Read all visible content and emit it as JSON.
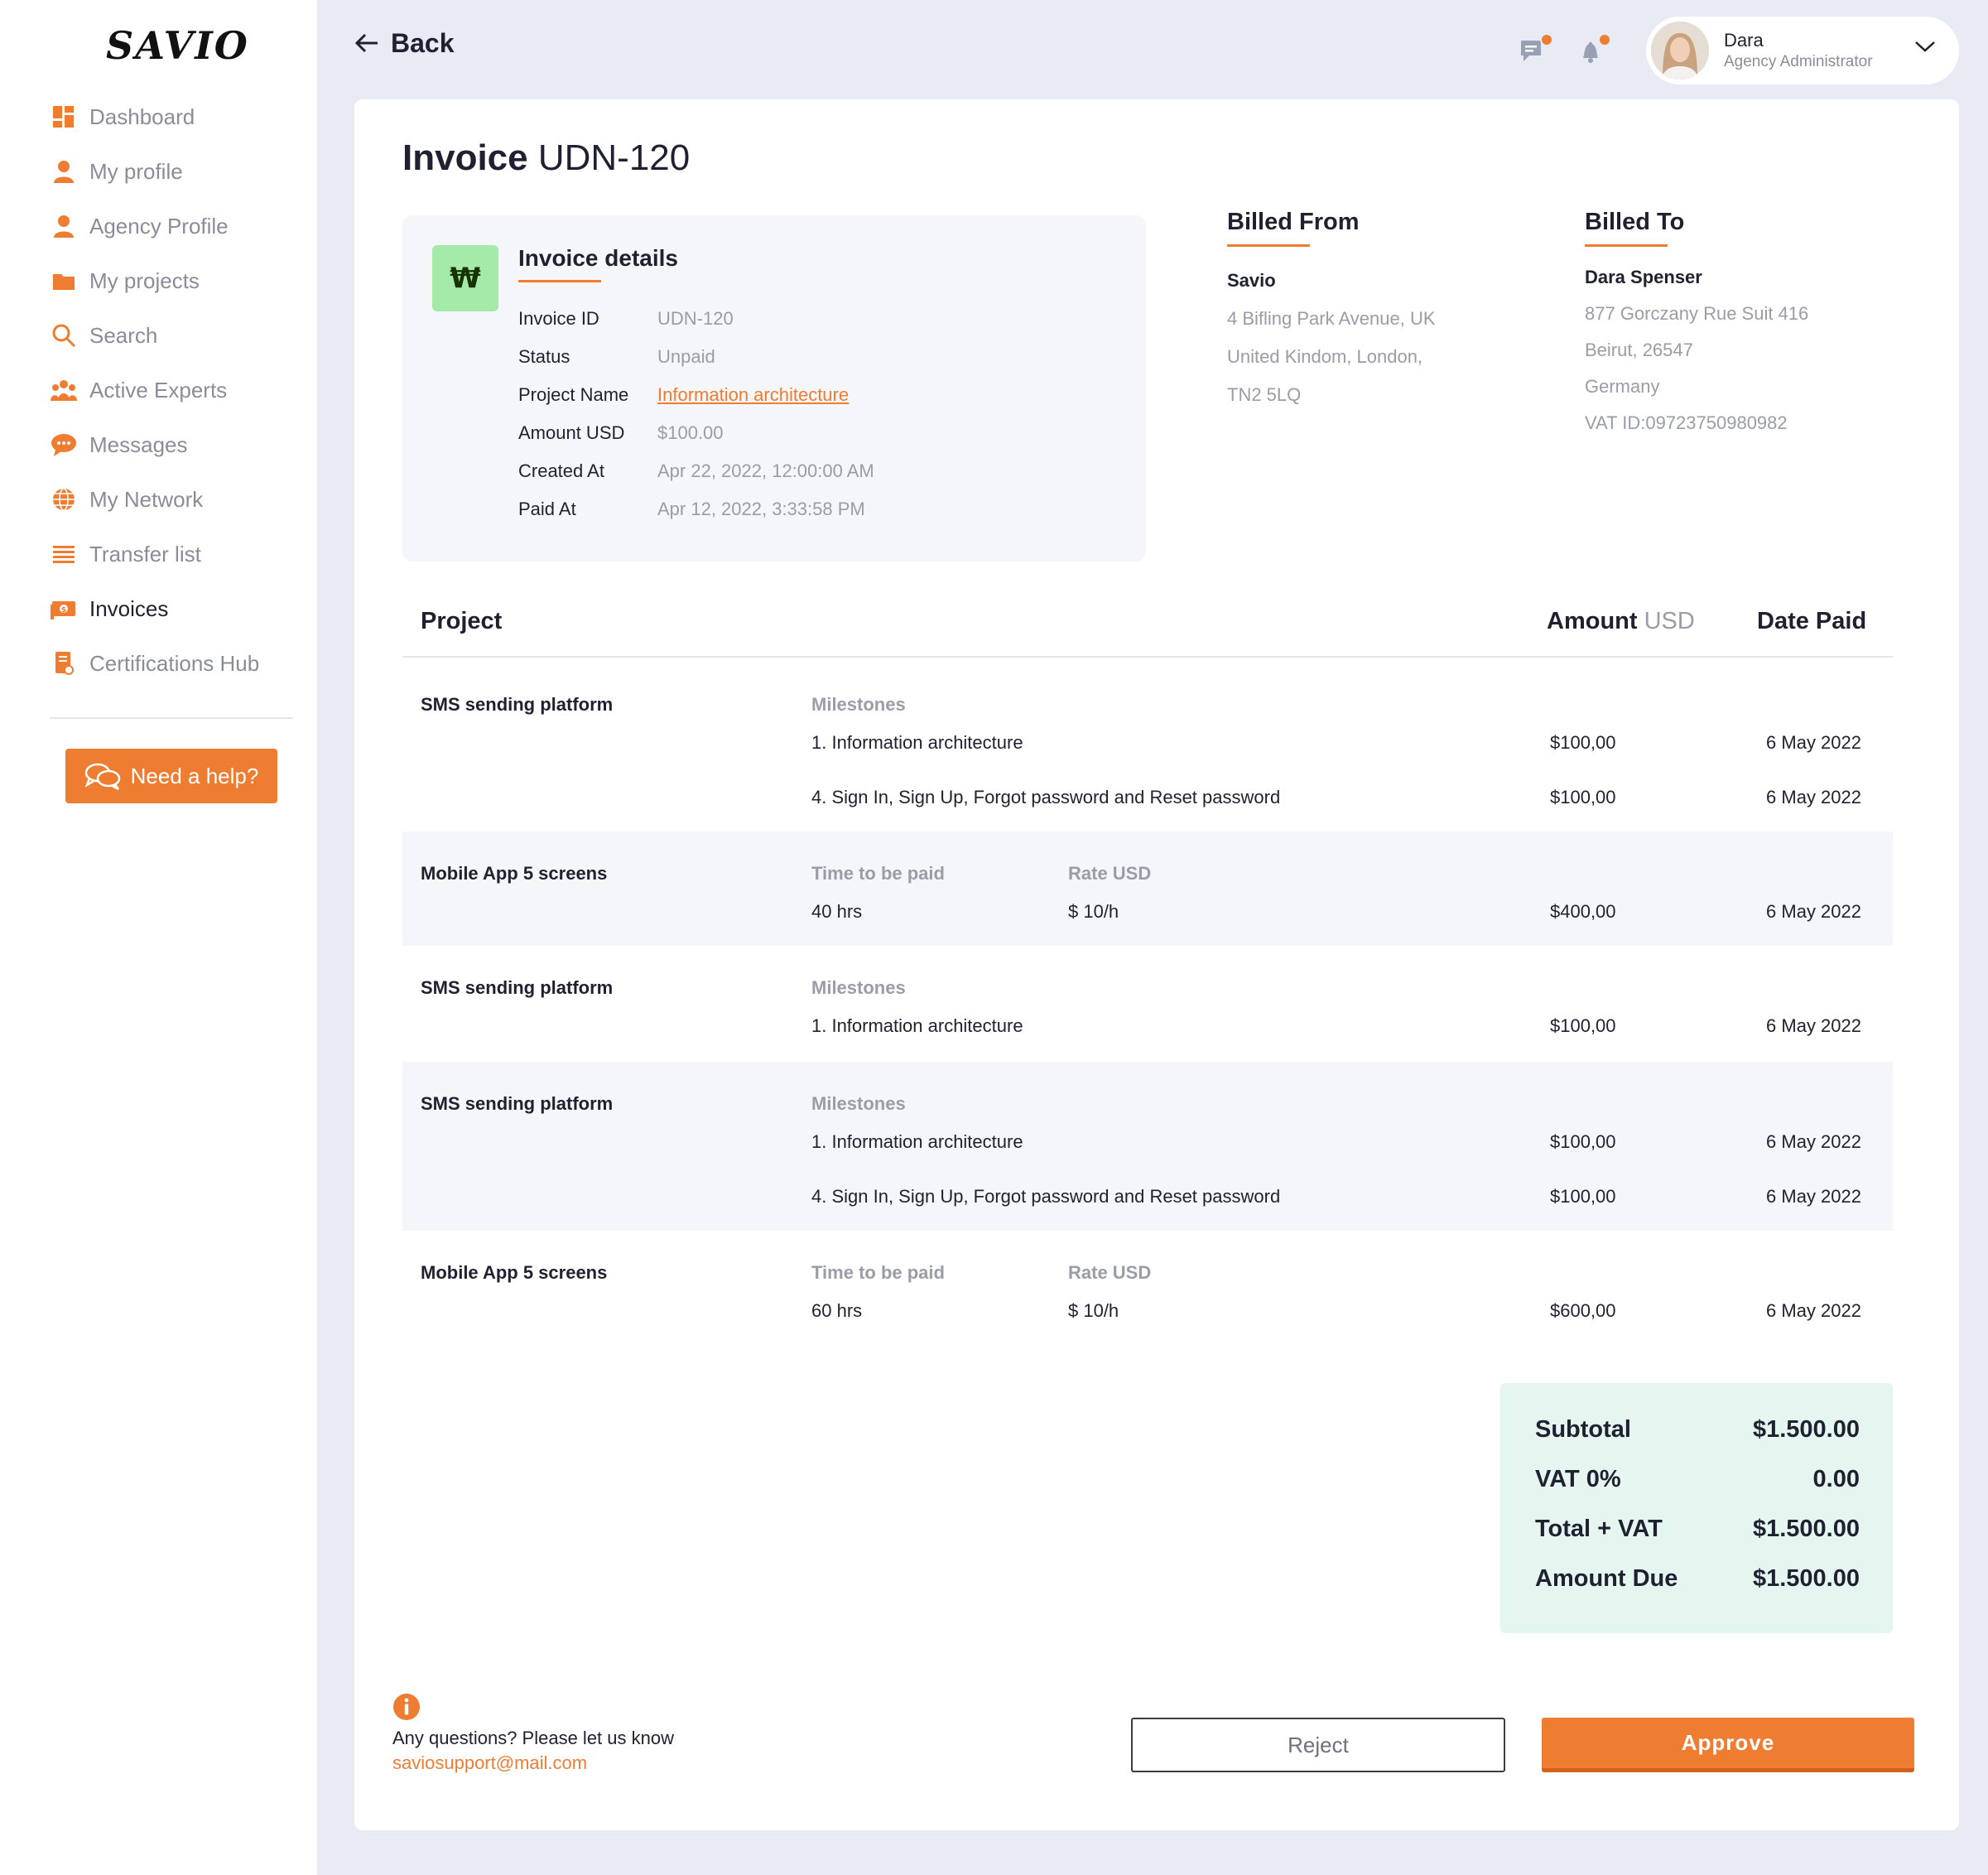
{
  "app": {
    "logo": "SAVIO"
  },
  "sidebar": {
    "items": [
      {
        "label": "Dashboard",
        "icon": "dashboard-icon"
      },
      {
        "label": "My profile",
        "icon": "user-icon"
      },
      {
        "label": "Agency Profile",
        "icon": "user-icon"
      },
      {
        "label": "My projects",
        "icon": "folder-icon"
      },
      {
        "label": "Search",
        "icon": "search-icon"
      },
      {
        "label": "Active Experts",
        "icon": "team-icon"
      },
      {
        "label": "Messages",
        "icon": "chat-icon"
      },
      {
        "label": "My Network",
        "icon": "globe-icon"
      },
      {
        "label": "Transfer list",
        "icon": "list-icon"
      },
      {
        "label": "Invoices",
        "icon": "invoice-icon",
        "active": true
      },
      {
        "label": "Certifications Hub",
        "icon": "certificate-icon"
      }
    ],
    "help_label": "Need a help?"
  },
  "topbar": {
    "back_label": "Back",
    "user": {
      "name": "Dara",
      "role": "Agency Administrator"
    }
  },
  "invoice": {
    "title_prefix": "Invoice",
    "title_id": "UDN-120",
    "details": {
      "heading": "Invoice details",
      "logo_text": "₩",
      "rows": [
        {
          "key": "Invoice ID",
          "value": "UDN-120"
        },
        {
          "key": "Status",
          "value": "Unpaid"
        },
        {
          "key": "Project Name",
          "value": "Information architecture"
        },
        {
          "key": "Amount USD",
          "value": "$100.00"
        },
        {
          "key": "Created At",
          "value": "Apr 22, 2022, 12:00:00 AM"
        },
        {
          "key": "Paid At",
          "value": "Apr 12, 2022, 3:33:58 PM"
        }
      ]
    },
    "billed_from": {
      "heading": "Billed From",
      "name": "Savio",
      "lines": [
        "4 Bifling Park Avenue, UK",
        "United Kindom, London,",
        "TN2 5LQ"
      ]
    },
    "billed_to": {
      "heading": "Billed To",
      "name": "Dara Spenser",
      "lines": [
        "877 Gorczany Rue Suit 416",
        "Beirut, 26547",
        "Germany",
        "VAT ID:09723750980982"
      ]
    }
  },
  "table": {
    "headers": {
      "project": "Project",
      "amount": "Amount",
      "amount_unit": "USD",
      "date": "Date Paid"
    },
    "sub_labels": {
      "milestones": "Milestones",
      "time": "Time to be paid",
      "rate": "Rate USD"
    },
    "rows": [
      {
        "project": "SMS sending platform",
        "type": "milestones",
        "items": [
          {
            "name": "1. Information architecture",
            "amount": "$100,00",
            "date": "6 May 2022"
          },
          {
            "name": "4. Sign In, Sign Up, Forgot password and Reset password",
            "amount": "$100,00",
            "date": "6 May 2022"
          }
        ]
      },
      {
        "project": "Mobile App 5 screens",
        "type": "time",
        "hours": "40 hrs",
        "rate": "$ 10/h",
        "amount": "$400,00",
        "date": "6 May 2022"
      },
      {
        "project": "SMS sending platform",
        "type": "milestones",
        "items": [
          {
            "name": "1. Information architecture",
            "amount": "$100,00",
            "date": "6 May 2022"
          }
        ]
      },
      {
        "project": "SMS sending platform",
        "type": "milestones",
        "items": [
          {
            "name": "1. Information architecture",
            "amount": "$100,00",
            "date": "6 May 2022"
          },
          {
            "name": "4. Sign In, Sign Up, Forgot password and Reset password",
            "amount": "$100,00",
            "date": "6 May 2022"
          }
        ]
      },
      {
        "project": "Mobile App 5 screens",
        "type": "time",
        "hours": "60 hrs",
        "rate": "$ 10/h",
        "amount": "$600,00",
        "date": "6 May 2022"
      }
    ]
  },
  "totals": {
    "subtotal_label": "Subtotal",
    "subtotal": "$1.500.00",
    "vat_label": "VAT 0%",
    "vat": "0.00",
    "total_label": "Total + VAT",
    "total": "$1.500.00",
    "due_label": "Amount Due",
    "due": "$1.500.00"
  },
  "footer": {
    "question": "Any questions? Please let us know",
    "email": "saviosupport@mail.com",
    "reject_label": "Reject",
    "approve_label": "Approve"
  },
  "colors": {
    "accent": "#ee7d32",
    "background": "#e8ebf3",
    "totals_bg": "#e5f6f0"
  }
}
